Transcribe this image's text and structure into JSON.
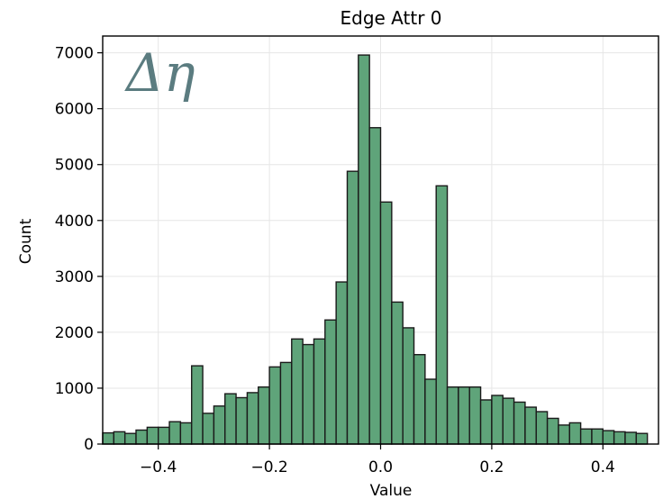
{
  "chart_data": {
    "type": "bar",
    "title": "Edge Attr 0",
    "xlabel": "Value",
    "ylabel": "Count",
    "annotation": "Δη",
    "xlim": [
      -0.5,
      0.5
    ],
    "ylim": [
      0,
      7300
    ],
    "xticks": [
      -0.4,
      -0.2,
      0.0,
      0.2,
      0.4
    ],
    "xtick_labels": [
      "−0.4",
      "−0.2",
      "0.0",
      "0.2",
      "0.4"
    ],
    "yticks": [
      0,
      1000,
      2000,
      3000,
      4000,
      5000,
      6000,
      7000
    ],
    "ytick_labels": [
      "0",
      "1000",
      "2000",
      "3000",
      "4000",
      "5000",
      "6000",
      "7000"
    ],
    "grid": true,
    "bin_width": 0.02,
    "bin_start": -0.5,
    "values": [
      200,
      220,
      190,
      250,
      300,
      300,
      400,
      380,
      1400,
      550,
      680,
      900,
      830,
      920,
      1020,
      1380,
      1460,
      1880,
      1780,
      1880,
      2220,
      2900,
      4880,
      6960,
      5660,
      4330,
      2540,
      2080,
      1600,
      1160,
      4620,
      1020,
      1020,
      1020,
      790,
      870,
      820,
      750,
      660,
      580,
      460,
      340,
      380,
      270,
      270,
      240,
      220,
      210,
      190
    ],
    "colors": {
      "bar_fill": "#5fa47a",
      "bar_edge": "#1a1a1a",
      "grid": "#e6e6e6",
      "annotation": "#5b7c80"
    }
  }
}
